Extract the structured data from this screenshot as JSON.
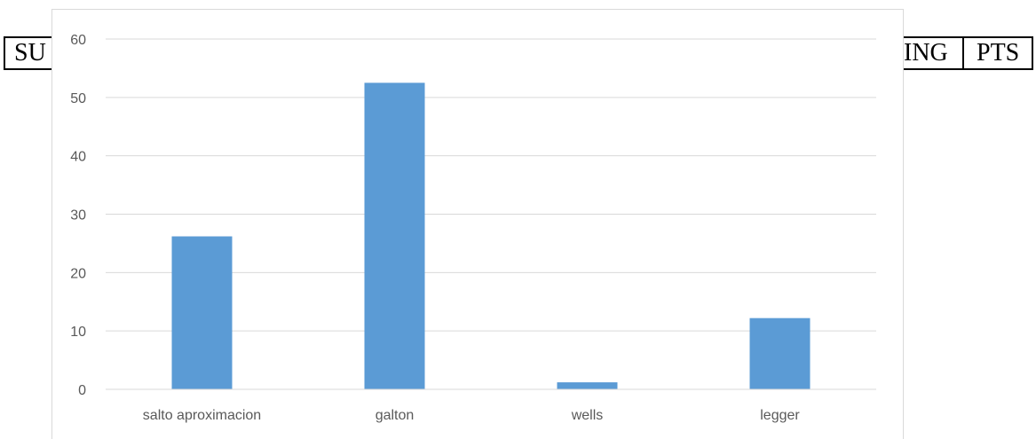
{
  "background_table": {
    "left_text": "SU",
    "right_text_a": "ING",
    "right_text_b": "PTS"
  },
  "chart_data": {
    "type": "bar",
    "categories": [
      "salto aproximacion",
      "galton",
      "wells",
      "legger"
    ],
    "values": [
      26.2,
      52.5,
      1.2,
      12.2
    ],
    "title": "",
    "xlabel": "",
    "ylabel": "",
    "ylim": [
      0,
      60
    ],
    "yticks": [
      0,
      10,
      20,
      30,
      40,
      50,
      60
    ],
    "grid": true,
    "legend": "none",
    "bar_color": "#5b9bd5",
    "grid_color": "#d9d9d9"
  }
}
